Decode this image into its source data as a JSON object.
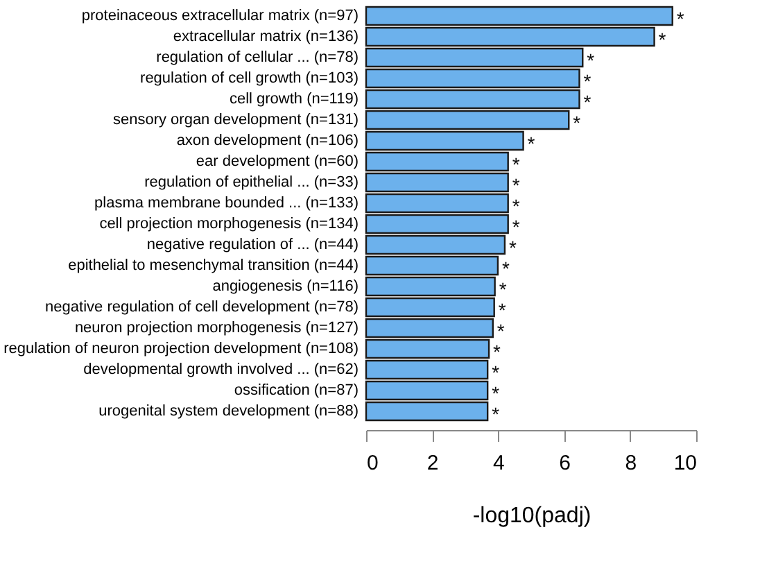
{
  "chart_data": {
    "type": "bar",
    "orientation": "horizontal",
    "xlabel": "-log10(padj)",
    "categories": [
      "proteinaceous extracellular matrix (n=97)",
      "extracellular matrix (n=136)",
      "regulation of cellular ... (n=78)",
      "regulation of cell growth (n=103)",
      "cell growth (n=119)",
      "sensory organ development (n=131)",
      "axon development (n=106)",
      "ear development (n=60)",
      "regulation of epithelial ... (n=33)",
      "plasma membrane bounded ... (n=133)",
      "cell projection morphogenesis (n=134)",
      "negative regulation of ... (n=44)",
      "epithelial to mesenchymal transition (n=44)",
      "angiogenesis (n=116)",
      "negative regulation of cell development (n=78)",
      "neuron projection morphogenesis (n=127)",
      "regulation of neuron projection development (n=108)",
      "developmental growth involved ... (n=62)",
      "ossification (n=87)",
      "urogenital system development (n=88)"
    ],
    "values": [
      9.28,
      8.73,
      6.56,
      6.46,
      6.46,
      6.14,
      4.76,
      4.3,
      4.3,
      4.3,
      4.3,
      4.2,
      3.99,
      3.9,
      3.88,
      3.84,
      3.72,
      3.68,
      3.68,
      3.68
    ],
    "color": "#6cb1ec",
    "xlim": [
      0,
      10
    ],
    "xticks": [
      0,
      2,
      4,
      6,
      8,
      10
    ],
    "grid": false,
    "annotations": [
      {
        "text": "*",
        "x": 9.28,
        "y": "proteinaceous extracellular matrix (n=97)"
      },
      {
        "text": "*",
        "x": 8.73,
        "y": "extracellular matrix (n=136)"
      },
      {
        "text": "*",
        "x": 6.56,
        "y": "regulation of cellular ... (n=78)"
      },
      {
        "text": "*",
        "x": 6.46,
        "y": "regulation of cell growth (n=103)"
      },
      {
        "text": "*",
        "x": 6.46,
        "y": "cell growth (n=119)"
      },
      {
        "text": "*",
        "x": 6.14,
        "y": "sensory organ development (n=131)"
      },
      {
        "text": "*",
        "x": 4.76,
        "y": "axon development (n=106)"
      },
      {
        "text": "*",
        "x": 4.3,
        "y": "ear development (n=60)"
      },
      {
        "text": "*",
        "x": 4.3,
        "y": "regulation of epithelial ... (n=33)"
      },
      {
        "text": "*",
        "x": 4.3,
        "y": "plasma membrane bounded ... (n=133)"
      },
      {
        "text": "*",
        "x": 4.3,
        "y": "cell projection morphogenesis (n=134)"
      },
      {
        "text": "*",
        "x": 4.2,
        "y": "negative regulation of ... (n=44)"
      },
      {
        "text": "*",
        "x": 3.99,
        "y": "epithelial to mesenchymal transition (n=44)"
      },
      {
        "text": "*",
        "x": 3.9,
        "y": "angiogenesis (n=116)"
      },
      {
        "text": "*",
        "x": 3.88,
        "y": "negative regulation of cell development (n=78)"
      },
      {
        "text": "*",
        "x": 3.84,
        "y": "neuron projection morphogenesis (n=127)"
      },
      {
        "text": "*",
        "x": 3.72,
        "y": "regulation of neuron projection development (n=108)"
      },
      {
        "text": "*",
        "x": 3.68,
        "y": "developmental growth involved ... (n=62)"
      },
      {
        "text": "*",
        "x": 3.68,
        "y": "ossification (n=87)"
      },
      {
        "text": "*",
        "x": 3.68,
        "y": "urogenital system development (n=88)"
      }
    ]
  }
}
